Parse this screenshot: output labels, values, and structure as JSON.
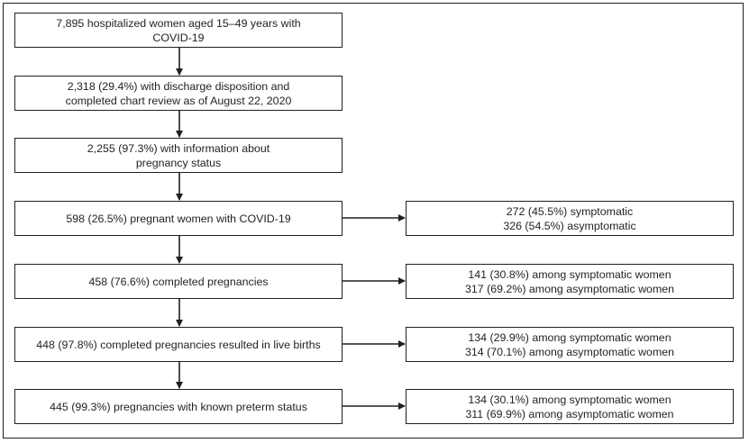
{
  "colors": {
    "ink": "#231f20",
    "background": "#ffffff"
  },
  "main_boxes": [
    {
      "lines": [
        "7,895 hospitalized women aged 15–49 years with",
        "COVID-19"
      ]
    },
    {
      "lines": [
        "2,318 (29.4%) with discharge disposition and",
        "completed chart review as of August 22, 2020"
      ]
    },
    {
      "lines": [
        "2,255 (97.3%) with information about",
        "pregnancy status"
      ]
    },
    {
      "lines": [
        "598 (26.5%) pregnant women with COVID-19"
      ]
    },
    {
      "lines": [
        "458 (76.6%) completed pregnancies"
      ]
    },
    {
      "lines": [
        "448 (97.8%) completed pregnancies resulted in live births"
      ]
    },
    {
      "lines": [
        "445 (99.3%) pregnancies with known preterm status"
      ]
    }
  ],
  "side_boxes": [
    {
      "lines": [
        "272 (45.5%) symptomatic",
        "326 (54.5%) asymptomatic"
      ]
    },
    {
      "lines": [
        "141 (30.8%) among symptomatic women",
        "317 (69.2%) among asymptomatic women"
      ]
    },
    {
      "lines": [
        "134 (29.9%) among symptomatic women",
        "314 (70.1%) among asymptomatic women"
      ]
    },
    {
      "lines": [
        "134 (30.1%) among symptomatic women",
        "311 (69.9%) among asymptomatic women"
      ]
    }
  ]
}
